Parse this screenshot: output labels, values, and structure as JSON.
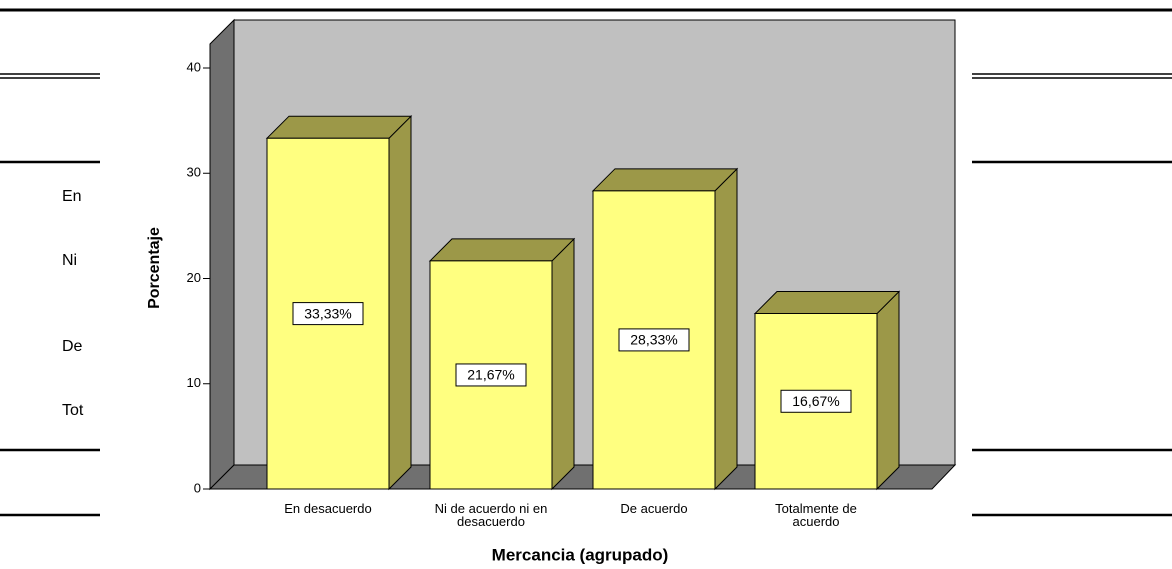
{
  "document": {
    "row_labels": [
      "En",
      "Ni",
      "De",
      "Tot"
    ]
  },
  "chart_data": {
    "type": "bar3d",
    "categories": [
      "En desacuerdo",
      "Ni de acuerdo ni en\ndesacuerdo",
      "De acuerdo",
      "Totalmente de\nacuerdo"
    ],
    "values": [
      33.33,
      21.67,
      28.33,
      16.67
    ],
    "value_labels": [
      "33,33%",
      "21,67%",
      "28,33%",
      "16,67%"
    ],
    "color": "#ffff80",
    "side_color": "#9c9848",
    "ylabel": "Porcentaje",
    "xlabel": "Mercancia (agrupado)",
    "ylim": [
      0,
      40
    ],
    "yticks": [
      0,
      10,
      20,
      30,
      40
    ]
  }
}
